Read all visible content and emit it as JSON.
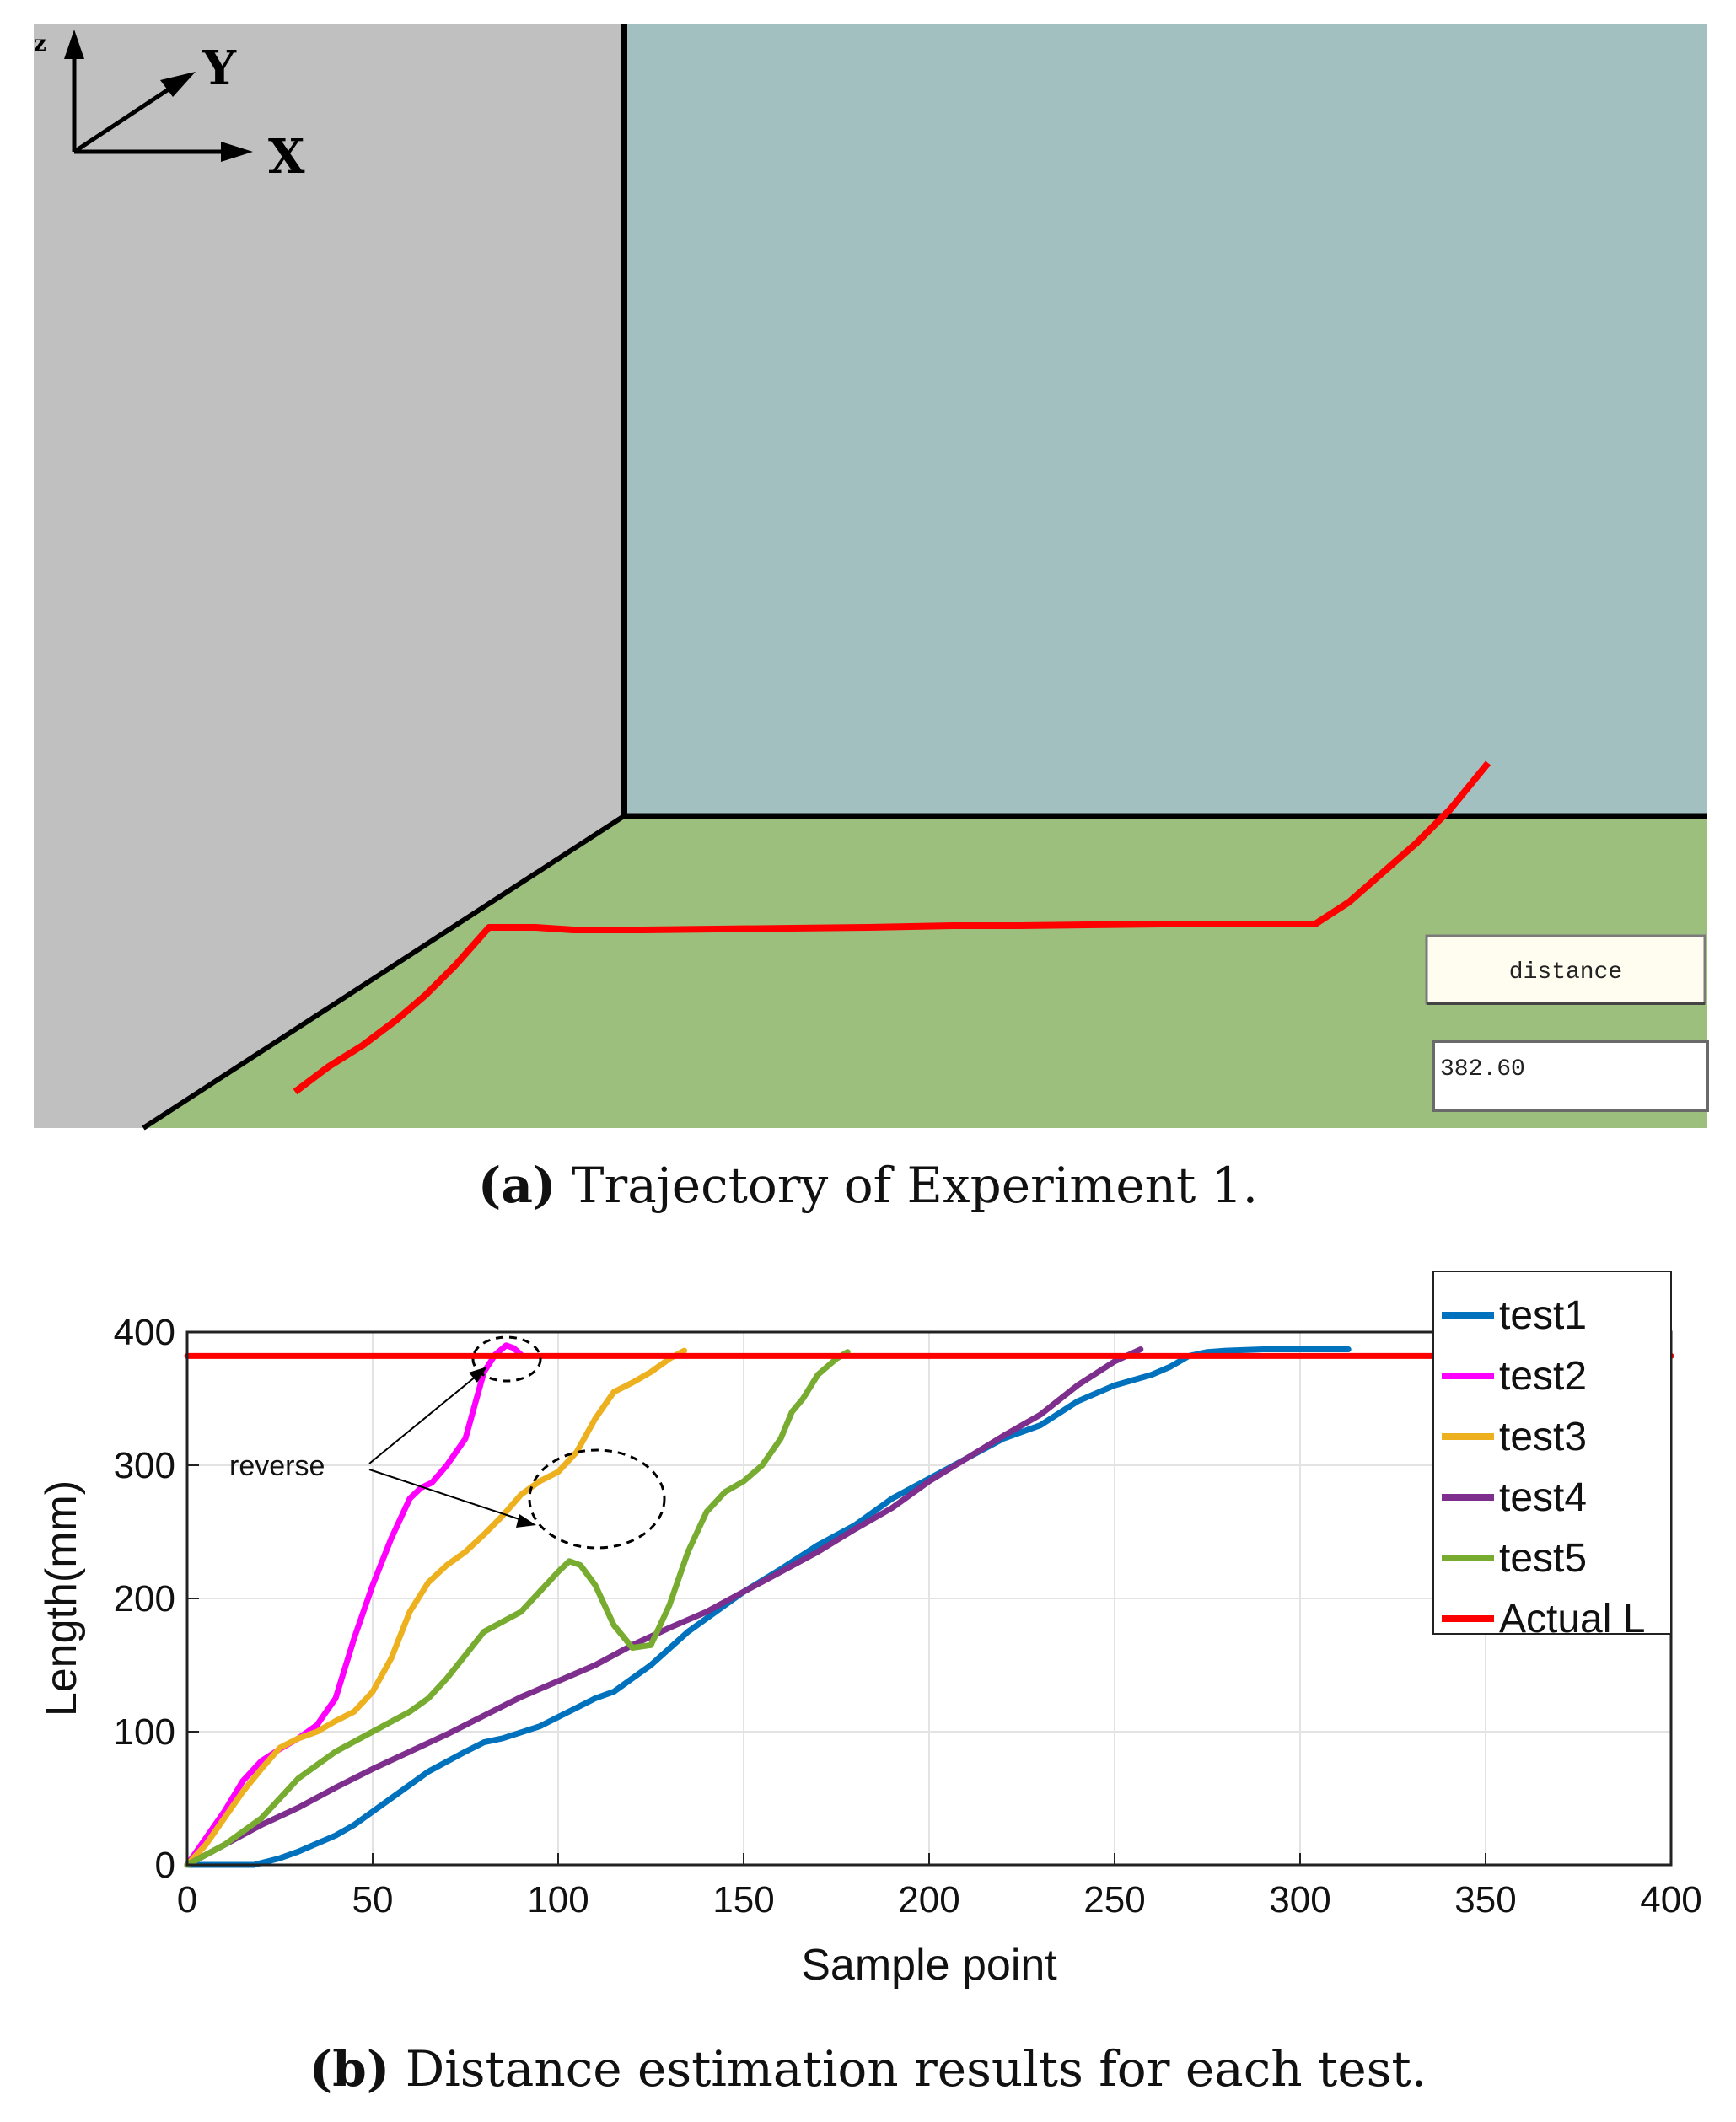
{
  "panel_a": {
    "axes_labels": {
      "x": "X",
      "y": "Y"
    },
    "distance_button_label": "distance",
    "distance_value": "382.60",
    "caption_letter": "(a)",
    "caption_text": "Trajectory of Experiment 1.",
    "colors": {
      "left_wall": "#c0c0c0",
      "back_wall": "#a2c0bf",
      "floor": "#9dbf7d",
      "trajectory": "#ff0000",
      "edge": "#000000"
    }
  },
  "panel_b": {
    "caption_letter": "(b)",
    "caption_text": "Distance estimation results for each test.",
    "annotation": "reverse"
  },
  "chart_data": {
    "type": "line",
    "xlabel": "Sample point",
    "ylabel": "Length(mm)",
    "xlim": [
      0,
      400
    ],
    "ylim": [
      0,
      400
    ],
    "xticks": [
      0,
      50,
      100,
      150,
      200,
      250,
      300,
      350,
      400
    ],
    "yticks": [
      0,
      100,
      200,
      300,
      400
    ],
    "grid": true,
    "legend_position": "right",
    "series": [
      {
        "name": "test1",
        "color": "#0072bd",
        "x": [
          0,
          18,
          25,
          30,
          40,
          45,
          55,
          65,
          75,
          80,
          85,
          95,
          105,
          110,
          115,
          125,
          135,
          150,
          160,
          170,
          180,
          190,
          200,
          210,
          220,
          230,
          240,
          250,
          260,
          265,
          270,
          275,
          280,
          290,
          300,
          313
        ],
        "y": [
          0,
          0,
          5,
          10,
          22,
          30,
          50,
          70,
          85,
          92,
          95,
          104,
          118,
          125,
          130,
          150,
          175,
          205,
          222,
          240,
          255,
          275,
          290,
          305,
          320,
          330,
          348,
          360,
          368,
          374,
          382,
          385,
          386,
          387,
          387,
          387
        ]
      },
      {
        "name": "test2",
        "color": "#ff00ff",
        "x": [
          0,
          5,
          10,
          15,
          20,
          25,
          30,
          35,
          40,
          45,
          50,
          55,
          60,
          63,
          66,
          70,
          75,
          78,
          80,
          83,
          86,
          88,
          90
        ],
        "y": [
          0,
          20,
          40,
          63,
          78,
          87,
          95,
          105,
          125,
          170,
          210,
          245,
          275,
          283,
          287,
          300,
          320,
          350,
          370,
          383,
          390,
          388,
          383
        ]
      },
      {
        "name": "test3",
        "color": "#edb120",
        "x": [
          0,
          5,
          10,
          15,
          20,
          25,
          30,
          35,
          40,
          45,
          50,
          55,
          60,
          65,
          70,
          75,
          80,
          85,
          90,
          95,
          100,
          105,
          110,
          115,
          120,
          125,
          130,
          134
        ],
        "y": [
          0,
          15,
          35,
          55,
          72,
          88,
          95,
          100,
          108,
          115,
          130,
          155,
          190,
          212,
          225,
          235,
          248,
          262,
          278,
          288,
          295,
          310,
          335,
          355,
          362,
          370,
          380,
          386
        ]
      },
      {
        "name": "test4",
        "color": "#7e2f8e",
        "x": [
          0,
          10,
          20,
          30,
          40,
          50,
          60,
          70,
          80,
          90,
          100,
          110,
          120,
          130,
          140,
          150,
          160,
          170,
          180,
          190,
          200,
          210,
          220,
          230,
          240,
          250,
          257
        ],
        "y": [
          0,
          15,
          30,
          43,
          58,
          72,
          85,
          98,
          112,
          126,
          138,
          150,
          165,
          178,
          190,
          205,
          220,
          235,
          252,
          268,
          288,
          305,
          322,
          338,
          360,
          378,
          387
        ]
      },
      {
        "name": "test5",
        "color": "#77ac30",
        "x": [
          0,
          10,
          20,
          30,
          35,
          40,
          50,
          60,
          65,
          70,
          80,
          90,
          95,
          100,
          103,
          106,
          110,
          115,
          120,
          125,
          130,
          135,
          140,
          145,
          150,
          155,
          160,
          163,
          166,
          170,
          175,
          178
        ],
        "y": [
          0,
          15,
          35,
          65,
          75,
          85,
          100,
          115,
          125,
          140,
          175,
          190,
          205,
          220,
          228,
          225,
          210,
          180,
          163,
          165,
          195,
          235,
          265,
          280,
          288,
          300,
          320,
          340,
          350,
          368,
          380,
          385
        ]
      },
      {
        "name": "Actual L",
        "color": "#ff0000",
        "x": [
          0,
          400
        ],
        "y": [
          382,
          382
        ]
      }
    ]
  }
}
